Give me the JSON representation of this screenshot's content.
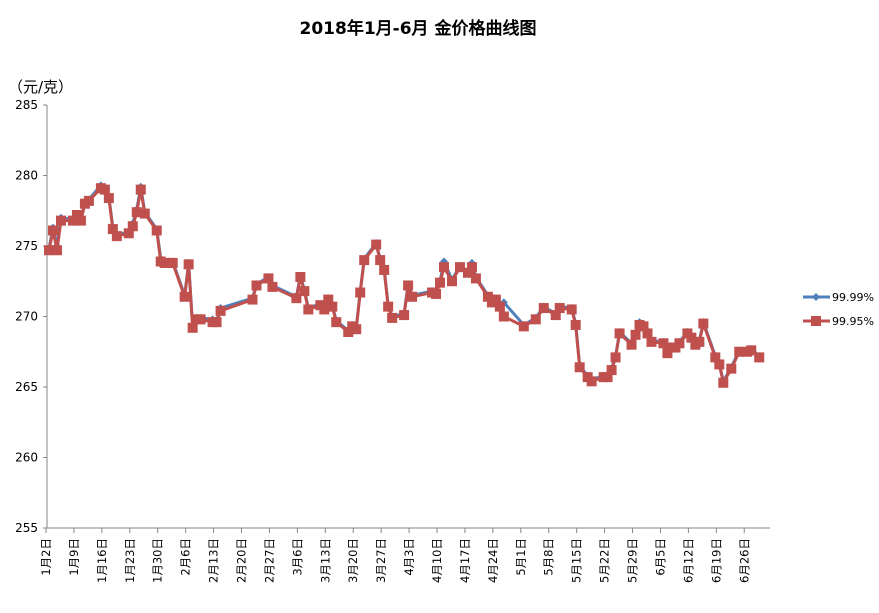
{
  "chart_data": {
    "type": "line",
    "title": "2018年1月-6月  金价格曲线图",
    "ylabel": "（元/克）",
    "xlabel": "",
    "ylim": [
      255,
      285
    ],
    "yticks": [
      255,
      260,
      265,
      270,
      275,
      280,
      285
    ],
    "grid": false,
    "legend_position": "right",
    "x_unit": "days since 1月2日",
    "xtick_days": [
      0,
      7,
      14,
      21,
      28,
      35,
      42,
      49,
      56,
      63,
      70,
      77,
      84,
      91,
      98,
      105,
      112,
      119,
      126,
      133,
      140,
      147,
      154,
      161,
      168,
      175
    ],
    "xtick_labels": [
      "1月2日",
      "1月9日",
      "1月16日",
      "1月23日",
      "1月30日",
      "2月6日",
      "2月13日",
      "2月20日",
      "2月27日",
      "3月6日",
      "3月13日",
      "3月20日",
      "3月27日",
      "4月3日",
      "4月10日",
      "4月17日",
      "4月24日",
      "5月1日",
      "5月8日",
      "5月15日",
      "5月22日",
      "5月29日",
      "6月5日",
      "6月12日",
      "6月19日",
      "6月26日"
    ],
    "x": [
      0,
      1,
      2,
      3,
      6,
      7,
      8,
      9,
      10,
      13,
      14,
      15,
      16,
      17,
      20,
      21,
      22,
      23,
      24,
      27,
      28,
      29,
      30,
      31,
      34,
      35,
      36,
      37,
      38,
      41,
      42,
      43,
      51,
      52,
      55,
      56,
      62,
      63,
      64,
      65,
      68,
      69,
      70,
      71,
      72,
      75,
      76,
      77,
      78,
      79,
      82,
      83,
      84,
      85,
      86,
      89,
      90,
      91,
      96,
      97,
      98,
      99,
      101,
      103,
      105,
      106,
      107,
      110,
      111,
      112,
      113,
      114,
      119,
      122,
      124,
      127,
      128,
      131,
      132,
      133,
      135,
      136,
      139,
      140,
      141,
      142,
      143,
      146,
      147,
      148,
      149,
      150,
      151,
      154,
      155,
      156,
      157,
      158,
      160,
      161,
      162,
      163,
      164,
      167,
      168,
      169,
      171,
      173,
      175,
      176,
      178
    ],
    "series": [
      {
        "name": "99.99%",
        "color": "#4F81BD",
        "marker": "diamond",
        "values": [
          274.8,
          276.3,
          275.0,
          277.0,
          276.9,
          277.3,
          276.9,
          278.1,
          278.3,
          279.3,
          279.1,
          278.5,
          276.3,
          275.8,
          276.0,
          276.6,
          277.6,
          279.2,
          277.4,
          276.2,
          274.1,
          273.9,
          273.9,
          273.9,
          271.5,
          273.8,
          269.3,
          269.9,
          269.9,
          269.8,
          269.7,
          270.6,
          271.3,
          272.3,
          272.8,
          272.2,
          271.4,
          272.9,
          271.9,
          270.6,
          270.9,
          270.7,
          271.3,
          270.8,
          269.7,
          269.0,
          269.4,
          269.2,
          271.8,
          274.1,
          275.2,
          274.1,
          273.4,
          270.8,
          270.0,
          270.2,
          272.3,
          271.5,
          271.8,
          271.7,
          272.5,
          273.9,
          272.6,
          273.6,
          273.2,
          273.8,
          272.8,
          271.5,
          271.1,
          271.3,
          270.8,
          271.0,
          269.4,
          269.9,
          270.7,
          270.2,
          270.7,
          270.6,
          269.5,
          266.5,
          265.8,
          265.5,
          265.8,
          265.8,
          266.3,
          267.2,
          268.9,
          268.1,
          268.8,
          269.6,
          269.4,
          268.9,
          268.3,
          268.2,
          267.5,
          267.9,
          267.9,
          268.2,
          268.9,
          268.6,
          268.1,
          268.3,
          269.6,
          267.2,
          266.7,
          265.4,
          266.4,
          267.6,
          267.6,
          267.7,
          267.2
        ]
      },
      {
        "name": "99.95%",
        "color": "#C0504D",
        "marker": "square",
        "values": [
          274.7,
          276.1,
          274.7,
          276.8,
          276.8,
          277.2,
          276.8,
          278.0,
          278.2,
          279.1,
          279.0,
          278.4,
          276.2,
          275.7,
          275.9,
          276.4,
          277.4,
          279.0,
          277.3,
          276.1,
          273.9,
          273.8,
          273.8,
          273.8,
          271.4,
          273.7,
          269.2,
          269.8,
          269.8,
          269.6,
          269.6,
          270.4,
          271.2,
          272.2,
          272.7,
          272.1,
          271.3,
          272.8,
          271.8,
          270.5,
          270.8,
          270.5,
          271.2,
          270.7,
          269.6,
          268.9,
          269.3,
          269.1,
          271.7,
          274.0,
          275.1,
          274.0,
          273.3,
          270.7,
          269.9,
          270.1,
          272.2,
          271.4,
          271.7,
          271.6,
          272.4,
          273.5,
          272.5,
          273.5,
          273.1,
          273.5,
          272.7,
          271.4,
          271.0,
          271.2,
          270.7,
          270.0,
          269.3,
          269.8,
          270.6,
          270.1,
          270.6,
          270.5,
          269.4,
          266.4,
          265.7,
          265.4,
          265.7,
          265.7,
          266.2,
          267.1,
          268.8,
          268.0,
          268.7,
          269.4,
          269.3,
          268.8,
          268.2,
          268.1,
          267.4,
          267.8,
          267.8,
          268.1,
          268.8,
          268.5,
          268.0,
          268.2,
          269.5,
          267.1,
          266.6,
          265.3,
          266.3,
          267.5,
          267.5,
          267.6,
          267.1
        ]
      }
    ]
  }
}
